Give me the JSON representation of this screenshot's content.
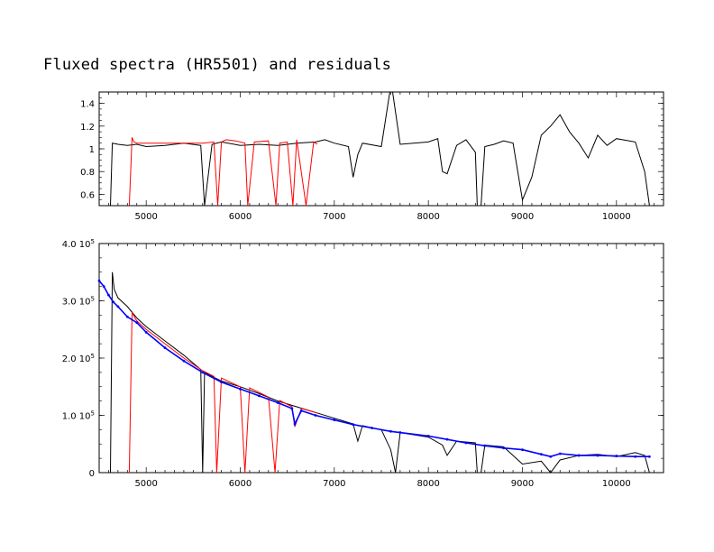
{
  "title": "Fluxed spectra (HR5501) and residuals",
  "colors": {
    "observed": "#000000",
    "fluxed": "#ff0000",
    "model": "#0000ff",
    "frame": "#000000"
  },
  "chart_data": [
    {
      "type": "line",
      "name": "residuals-panel",
      "xlim": [
        4500,
        10500
      ],
      "ylim": [
        0.5,
        1.5
      ],
      "xticks": [
        5000,
        6000,
        7000,
        8000,
        9000,
        10000
      ],
      "yticks": [
        {
          "value": 0.6,
          "label": "0.6"
        },
        {
          "value": 0.8,
          "label": "0.8"
        },
        {
          "value": 1.0,
          "label": "1"
        },
        {
          "value": 1.2,
          "label": "1.2"
        },
        {
          "value": 1.4,
          "label": "1.4"
        }
      ],
      "series": [
        {
          "color": "black",
          "x": [
            4620,
            4640,
            4700,
            4800,
            4900,
            5000,
            5200,
            5400,
            5580,
            5620,
            5700,
            5800,
            6000,
            6200,
            6400,
            6600,
            6800,
            6900,
            7000,
            7150,
            7200,
            7250,
            7300,
            7500,
            7590,
            7620,
            7700,
            8000,
            8100,
            8150,
            8200,
            8300,
            8400,
            8500,
            8520,
            8560,
            8600,
            8700,
            8800,
            8900,
            9000,
            9100,
            9200,
            9300,
            9400,
            9500,
            9600,
            9700,
            9800,
            9900,
            10000,
            10200,
            10300,
            10350
          ],
          "y": [
            0.5,
            1.05,
            1.04,
            1.03,
            1.04,
            1.02,
            1.03,
            1.05,
            1.03,
            0.5,
            1.04,
            1.06,
            1.03,
            1.04,
            1.03,
            1.05,
            1.06,
            1.08,
            1.05,
            1.02,
            0.75,
            0.95,
            1.05,
            1.02,
            1.5,
            1.5,
            1.04,
            1.06,
            1.09,
            0.8,
            0.78,
            1.03,
            1.08,
            0.97,
            0.5,
            0.5,
            1.02,
            1.04,
            1.07,
            1.05,
            0.55,
            0.75,
            1.12,
            1.2,
            1.3,
            1.15,
            1.05,
            0.92,
            1.12,
            1.03,
            1.09,
            1.06,
            0.8,
            0.5
          ]
        },
        {
          "color": "red",
          "x": [
            4820,
            4850,
            4870,
            4900,
            5000,
            5200,
            5400,
            5600,
            5720,
            5760,
            5800,
            5850,
            5950,
            6050,
            6080,
            6150,
            6300,
            6380,
            6420,
            6500,
            6560,
            6600,
            6700,
            6780,
            6820
          ],
          "y": [
            0.5,
            1.1,
            1.06,
            1.05,
            1.05,
            1.05,
            1.05,
            1.05,
            1.06,
            0.5,
            1.06,
            1.08,
            1.07,
            1.05,
            0.5,
            1.06,
            1.07,
            0.5,
            1.05,
            1.06,
            0.5,
            1.08,
            0.5,
            1.06,
            1.04
          ]
        }
      ]
    },
    {
      "type": "line",
      "name": "flux-panel",
      "xlim": [
        4500,
        10500
      ],
      "ylim": [
        0,
        400000
      ],
      "xticks": [
        5000,
        6000,
        7000,
        8000,
        9000,
        10000
      ],
      "yticks": [
        {
          "value": 0,
          "label": "0",
          "exp": ""
        },
        {
          "value": 100000,
          "label": "1.0 10",
          "exp": "5"
        },
        {
          "value": 200000,
          "label": "2.0 10",
          "exp": "5"
        },
        {
          "value": 300000,
          "label": "3.0 10",
          "exp": "5"
        },
        {
          "value": 400000,
          "label": "4.0 10",
          "exp": "5"
        }
      ],
      "series": [
        {
          "color": "black",
          "x": [
            4620,
            4640,
            4660,
            4700,
            4800,
            4900,
            5000,
            5200,
            5400,
            5580,
            5600,
            5620,
            5700,
            5800,
            6000,
            6200,
            6400,
            6600,
            6800,
            7000,
            7200,
            7250,
            7300,
            7500,
            7600,
            7650,
            7700,
            8000,
            8150,
            8200,
            8300,
            8500,
            8520,
            8560,
            8600,
            8800,
            9000,
            9200,
            9300,
            9400,
            9600,
            9800,
            10000,
            10200,
            10300,
            10350
          ],
          "y": [
            0,
            350000,
            320000,
            305000,
            290000,
            270000,
            255000,
            230000,
            205000,
            180000,
            0,
            175000,
            168000,
            160000,
            150000,
            138000,
            125000,
            115000,
            105000,
            95000,
            85000,
            55000,
            82000,
            75000,
            40000,
            0,
            70000,
            62000,
            48000,
            30000,
            55000,
            52000,
            0,
            0,
            48000,
            45000,
            15000,
            20000,
            0,
            22000,
            30000,
            32000,
            28000,
            35000,
            30000,
            0
          ]
        },
        {
          "color": "red",
          "x": [
            4820,
            4850,
            4880,
            4900,
            5000,
            5200,
            5400,
            5600,
            5720,
            5750,
            5800,
            6000,
            6050,
            6100,
            6300,
            6370,
            6420,
            6550,
            6580,
            6650,
            6820
          ],
          "y": [
            0,
            280000,
            270000,
            265000,
            250000,
            225000,
            200000,
            178000,
            168000,
            0,
            165000,
            150000,
            0,
            148000,
            132000,
            0,
            126000,
            115000,
            80000,
            112000,
            104000
          ]
        },
        {
          "color": "blue",
          "x": [
            4500,
            4550,
            4600,
            4650,
            4700,
            4800,
            4900,
            5000,
            5200,
            5400,
            5600,
            5800,
            6000,
            6200,
            6400,
            6550,
            6580,
            6650,
            6800,
            7000,
            7200,
            7400,
            7600,
            7700,
            8000,
            8200,
            8400,
            8600,
            8800,
            9000,
            9200,
            9300,
            9400,
            9600,
            9800,
            10000,
            10200,
            10350
          ],
          "y": [
            335000,
            325000,
            310000,
            298000,
            290000,
            272000,
            262000,
            245000,
            218000,
            195000,
            175000,
            158000,
            146000,
            134000,
            122000,
            112000,
            85000,
            108000,
            100000,
            92000,
            84000,
            78000,
            72000,
            70000,
            64000,
            58000,
            52000,
            47000,
            43000,
            40000,
            32000,
            28000,
            33000,
            30000,
            30000,
            29000,
            28000,
            28000
          ]
        }
      ]
    }
  ]
}
